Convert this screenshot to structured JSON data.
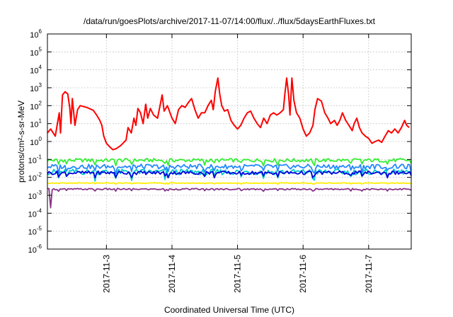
{
  "chart_data": {
    "type": "line",
    "title": "/data/run/goesPlots/archive/2017-11-07/14:00/flux/../flux/5daysEarthFluxes.txt",
    "xlabel": "Coordinated Universal Time (UTC)",
    "ylabel": "protons/cm²-s-sr-MeV",
    "yscale": "log",
    "ylim": [
      1e-06,
      1000000.0
    ],
    "xlim": [
      2.1,
      7.65
    ],
    "x_ticks": [
      {
        "x": 3,
        "label": "2017-11-3"
      },
      {
        "x": 4,
        "label": "2017-11-4"
      },
      {
        "x": 5,
        "label": "2017-11-5"
      },
      {
        "x": 6,
        "label": "2017-11-6"
      },
      {
        "x": 7,
        "label": "2017-11-7"
      }
    ],
    "y_ticks": [
      {
        "v": 1e-06,
        "base": "10",
        "exp": "-6"
      },
      {
        "v": 1e-05,
        "base": "10",
        "exp": "-5"
      },
      {
        "v": 0.0001,
        "base": "10",
        "exp": "-4"
      },
      {
        "v": 0.001,
        "base": "10",
        "exp": "-3"
      },
      {
        "v": 0.01,
        "base": "10",
        "exp": "-2"
      },
      {
        "v": 0.1,
        "base": "10",
        "exp": "-1"
      },
      {
        "v": 1,
        "base": "10",
        "exp": "0"
      },
      {
        "v": 10,
        "base": "10",
        "exp": "1"
      },
      {
        "v": 100,
        "base": "10",
        "exp": "2"
      },
      {
        "v": 1000,
        "base": "10",
        "exp": "3"
      },
      {
        "v": 10000,
        "base": "10",
        "exp": "4"
      },
      {
        "v": 100000,
        "base": "10",
        "exp": "5"
      },
      {
        "v": 1000000,
        "base": "10",
        "exp": "6"
      }
    ],
    "grid": true,
    "series": [
      {
        "color": "#ff0000",
        "points": [
          [
            2.1,
            3
          ],
          [
            2.15,
            5
          ],
          [
            2.22,
            2
          ],
          [
            2.28,
            40
          ],
          [
            2.3,
            3
          ],
          [
            2.33,
            400
          ],
          [
            2.37,
            600
          ],
          [
            2.41,
            450
          ],
          [
            2.44,
            80
          ],
          [
            2.46,
            10
          ],
          [
            2.48,
            250
          ],
          [
            2.52,
            8
          ],
          [
            2.56,
            60
          ],
          [
            2.6,
            100
          ],
          [
            2.7,
            80
          ],
          [
            2.8,
            55
          ],
          [
            2.85,
            30
          ],
          [
            2.9,
            15
          ],
          [
            2.93,
            8
          ],
          [
            2.96,
            2
          ],
          [
            3.0,
            0.8
          ],
          [
            3.05,
            0.5
          ],
          [
            3.1,
            0.35
          ],
          [
            3.15,
            0.4
          ],
          [
            3.22,
            0.6
          ],
          [
            3.3,
            1.2
          ],
          [
            3.33,
            6
          ],
          [
            3.38,
            3
          ],
          [
            3.42,
            20
          ],
          [
            3.45,
            8
          ],
          [
            3.48,
            70
          ],
          [
            3.52,
            40
          ],
          [
            3.56,
            10
          ],
          [
            3.6,
            120
          ],
          [
            3.63,
            20
          ],
          [
            3.67,
            70
          ],
          [
            3.72,
            30
          ],
          [
            3.78,
            20
          ],
          [
            3.85,
            400
          ],
          [
            3.88,
            50
          ],
          [
            3.93,
            100
          ],
          [
            3.97,
            40
          ],
          [
            4.0,
            20
          ],
          [
            4.05,
            10
          ],
          [
            4.1,
            60
          ],
          [
            4.15,
            100
          ],
          [
            4.2,
            80
          ],
          [
            4.25,
            150
          ],
          [
            4.3,
            250
          ],
          [
            4.35,
            60
          ],
          [
            4.4,
            20
          ],
          [
            4.45,
            40
          ],
          [
            4.5,
            40
          ],
          [
            4.55,
            100
          ],
          [
            4.6,
            200
          ],
          [
            4.63,
            60
          ],
          [
            4.66,
            600
          ],
          [
            4.7,
            3500
          ],
          [
            4.73,
            400
          ],
          [
            4.76,
            100
          ],
          [
            4.8,
            50
          ],
          [
            4.85,
            60
          ],
          [
            4.9,
            15
          ],
          [
            4.95,
            8
          ],
          [
            5.0,
            5
          ],
          [
            5.05,
            8
          ],
          [
            5.1,
            20
          ],
          [
            5.15,
            40
          ],
          [
            5.2,
            50
          ],
          [
            5.25,
            20
          ],
          [
            5.3,
            10
          ],
          [
            5.35,
            6
          ],
          [
            5.4,
            20
          ],
          [
            5.45,
            10
          ],
          [
            5.5,
            30
          ],
          [
            5.55,
            40
          ],
          [
            5.6,
            30
          ],
          [
            5.65,
            40
          ],
          [
            5.7,
            60
          ],
          [
            5.72,
            400
          ],
          [
            5.75,
            3500
          ],
          [
            5.78,
            400
          ],
          [
            5.8,
            30
          ],
          [
            5.83,
            3500
          ],
          [
            5.86,
            200
          ],
          [
            5.9,
            40
          ],
          [
            5.95,
            20
          ],
          [
            6.0,
            5
          ],
          [
            6.05,
            2
          ],
          [
            6.1,
            3
          ],
          [
            6.15,
            8
          ],
          [
            6.18,
            60
          ],
          [
            6.22,
            250
          ],
          [
            6.28,
            180
          ],
          [
            6.33,
            40
          ],
          [
            6.38,
            20
          ],
          [
            6.42,
            10
          ],
          [
            6.48,
            15
          ],
          [
            6.52,
            8
          ],
          [
            6.56,
            15
          ],
          [
            6.6,
            40
          ],
          [
            6.65,
            15
          ],
          [
            6.7,
            8
          ],
          [
            6.75,
            4
          ],
          [
            6.78,
            10
          ],
          [
            6.82,
            20
          ],
          [
            6.86,
            6
          ],
          [
            6.9,
            3
          ],
          [
            6.95,
            2
          ],
          [
            7.0,
            1.5
          ],
          [
            7.05,
            0.8
          ],
          [
            7.1,
            1
          ],
          [
            7.15,
            1.2
          ],
          [
            7.2,
            0.9
          ],
          [
            7.25,
            2
          ],
          [
            7.3,
            4
          ],
          [
            7.35,
            3
          ],
          [
            7.4,
            5
          ],
          [
            7.45,
            3
          ],
          [
            7.5,
            6
          ],
          [
            7.55,
            15
          ],
          [
            7.58,
            8
          ],
          [
            7.62,
            6
          ]
        ]
      },
      {
        "color": "#33ee33",
        "base": 0.09,
        "amp": 0.1
      },
      {
        "color": "#00cccc",
        "base": 0.02,
        "amp": 0.16
      },
      {
        "color": "#2288ff",
        "base": 0.04,
        "amp": 0.13
      },
      {
        "color": "#0000dd",
        "base": 0.018,
        "amp": 0.1
      },
      {
        "color": "#ffee00",
        "base": 0.0048,
        "amp": 0.02
      },
      {
        "color": "#883388",
        "base": 0.0022,
        "amp": 0.04
      }
    ]
  }
}
